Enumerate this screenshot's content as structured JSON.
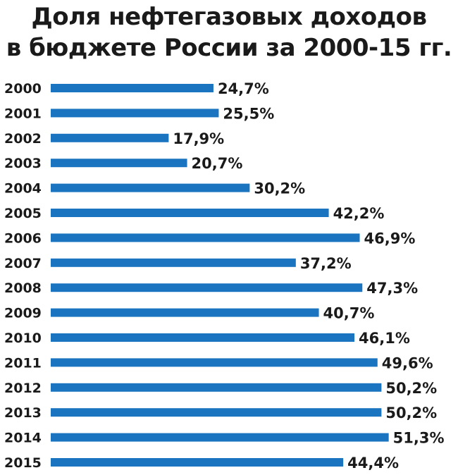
{
  "title_lines": [
    "Доля нефтегазовых доходов",
    "в бюджете России за 2000-15 гг."
  ],
  "colors": {
    "bar": "#1a74bf",
    "text": "#1a1a1a",
    "background": "#ffffff"
  },
  "chart_data": {
    "type": "bar",
    "orientation": "horizontal",
    "title": "Доля нефтегазовых доходов в бюджете России за 2000-15 гг.",
    "categories": [
      "2000",
      "2001",
      "2002",
      "2003",
      "2004",
      "2005",
      "2006",
      "2007",
      "2008",
      "2009",
      "2010",
      "2011",
      "2012",
      "2013",
      "2014",
      "2015"
    ],
    "values": [
      24.7,
      25.5,
      17.9,
      20.7,
      30.2,
      42.2,
      46.9,
      37.2,
      47.3,
      40.7,
      46.1,
      49.6,
      50.2,
      50.2,
      51.3,
      44.4
    ],
    "value_labels": [
      "24,7%",
      "25,5%",
      "17,9%",
      "20,7%",
      "30,2%",
      "42,2%",
      "46,9%",
      "37,2%",
      "47,3%",
      "40,7%",
      "46,1%",
      "49,6%",
      "50,2%",
      "50,2%",
      "51,3%",
      "44,4%"
    ],
    "xlabel": "",
    "ylabel": "",
    "grid": false,
    "legend": "none"
  }
}
